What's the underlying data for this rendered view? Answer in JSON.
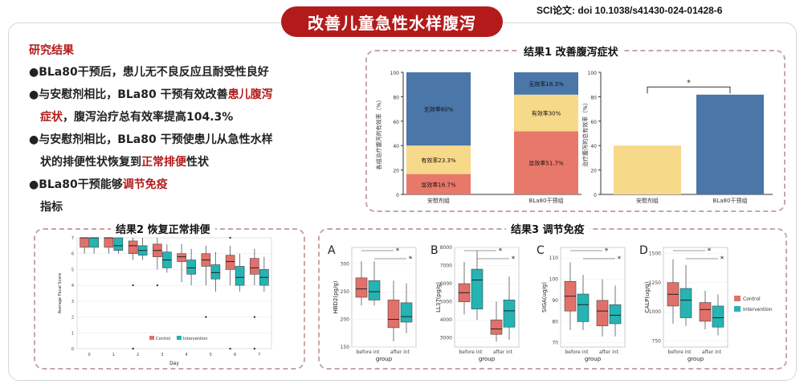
{
  "header": {
    "title": "改善儿童急性水样腹泻",
    "doi": "SCI论文: doi 10.1038/s41430-024-01428-6"
  },
  "findings": {
    "title": "研究结果",
    "bullets": [
      {
        "mark": "●",
        "l1a": "BLa80干预后，患儿无不良反应且耐受性良好",
        "l1em": "",
        "l2a": "",
        "l2em": "",
        "l2b": ""
      },
      {
        "mark": "●",
        "l1a": "与安慰剂相比，BLa80 干预有效改善",
        "l1em": "患儿腹泻",
        "l2a": "",
        "l2em": "症状",
        "l2b": "，腹泻治疗总有效率提高104.3%"
      },
      {
        "mark": "●",
        "l1a": "与安慰剂相比，BLa80 干预使患儿从急性水样",
        "l1em": "",
        "l2a": "状的排便性状恢复到",
        "l2em": "正常排便",
        "l2b": "性状"
      },
      {
        "mark": "●",
        "l1a": "BLa80干预能够",
        "l1em": "调节免疫",
        "l2a": "",
        "l2em": "",
        "l2b": "指标"
      }
    ]
  },
  "result1_title": "结果1 改善腹泻症状",
  "result2_title": "结果2 恢复正常排便",
  "result3_title": "结果3 调节免疫",
  "chart_data": [
    {
      "type": "bar",
      "stacked": true,
      "ylabel": "各组治疗腹泻的有效率（%）",
      "ylim": [
        0,
        100
      ],
      "yticks": [
        0,
        20,
        40,
        60,
        80,
        100
      ],
      "categories": [
        "安慰剂组",
        "BLa80干预组"
      ],
      "series": [
        {
          "name": "显效率",
          "color": "#e8786a",
          "values": [
            16.7,
            51.7
          ],
          "labels": [
            "显效率16.7%",
            "显效率51.7%"
          ]
        },
        {
          "name": "有效率",
          "color": "#f7d98a",
          "values": [
            23.3,
            30
          ],
          "labels": [
            "有效率23.3%",
            "有效率30%"
          ]
        },
        {
          "name": "无效率",
          "color": "#4a76a8",
          "values": [
            60,
            18.3
          ],
          "labels": [
            "无效率60%",
            "无效率18.3%"
          ]
        }
      ]
    },
    {
      "type": "bar",
      "ylabel": "治疗腹泻的总有效率（%）",
      "ylim": [
        0,
        100
      ],
      "yticks": [
        0,
        20,
        40,
        60,
        80,
        100
      ],
      "categories": [
        "安慰剂组",
        "BLa80干预组"
      ],
      "values": [
        40,
        81.7
      ],
      "colors": [
        "#f7d98a",
        "#4a76a8"
      ],
      "annotation": "*"
    },
    {
      "type": "box",
      "xlabel": "Day",
      "ylabel": "Average Fecal Score",
      "ylim": [
        0,
        7
      ],
      "yticks": [
        0,
        1,
        2,
        3,
        4,
        5,
        6,
        7
      ],
      "categories": [
        "0",
        "1",
        "2",
        "3",
        "4",
        "5",
        "6",
        "7"
      ],
      "legend": [
        "Control",
        "Intervention"
      ],
      "colors": [
        "#e2706a",
        "#26b3b3"
      ],
      "series": [
        {
          "name": "Control",
          "boxes": [
            [
              6,
              6.4,
              7,
              7,
              7
            ],
            [
              6,
              6.4,
              7,
              7,
              7
            ],
            [
              5.6,
              6,
              6.5,
              6.8,
              7
            ],
            [
              5,
              5.8,
              6.2,
              6.6,
              7
            ],
            [
              4.2,
              5.5,
              5.8,
              6,
              6.6
            ],
            [
              4,
              5.2,
              5.6,
              6,
              6.5
            ],
            [
              4,
              5,
              5.5,
              5.9,
              6.5
            ],
            [
              4,
              4.7,
              5.1,
              5.7,
              6.3
            ]
          ]
        },
        {
          "name": "Intervention",
          "boxes": [
            [
              6,
              6.4,
              7,
              7,
              7
            ],
            [
              6,
              6.2,
              6.5,
              7,
              7
            ],
            [
              5.6,
              5.9,
              6.2,
              6.5,
              7
            ],
            [
              4.8,
              5.1,
              5.6,
              6.1,
              6.6
            ],
            [
              4,
              4.7,
              5.1,
              5.6,
              6.3
            ],
            [
              3.6,
              4.4,
              4.8,
              5.3,
              6.1
            ],
            [
              3.6,
              4,
              4.5,
              5.2,
              6
            ],
            [
              3.6,
              4,
              4.5,
              5,
              5.8
            ]
          ]
        }
      ],
      "outliers": [
        [
          2,
          4
        ],
        [
          3,
          4
        ],
        [
          2,
          0
        ],
        [
          5,
          2
        ],
        [
          6,
          0
        ],
        [
          7,
          2
        ],
        [
          7,
          0
        ],
        [
          6,
          7
        ]
      ]
    },
    {
      "type": "box",
      "panel": "A",
      "ylabel": "HBD2(pg/g)",
      "xlabel": "group",
      "ylim": [
        150,
        330
      ],
      "yticks": [
        150,
        200,
        250,
        300
      ],
      "categories": [
        "before int",
        "after int"
      ],
      "series": [
        {
          "name": "Control",
          "boxes": [
            [
              225,
              240,
              255,
              275,
              305
            ],
            [
              160,
              185,
              200,
              235,
              270
            ]
          ]
        },
        {
          "name": "Intervention",
          "boxes": [
            [
              225,
              235,
              250,
              270,
              305
            ],
            [
              175,
              195,
              205,
              230,
              265
            ]
          ]
        }
      ],
      "annotation": "*"
    },
    {
      "type": "box",
      "panel": "B",
      "ylabel": "LL37(pg/g)",
      "xlabel": "group",
      "ylim": [
        2500,
        8000
      ],
      "yticks": [
        3000,
        4000,
        5000,
        6000,
        7000,
        8000
      ],
      "categories": [
        "before int",
        "after int"
      ],
      "series": [
        {
          "name": "Control",
          "boxes": [
            [
              4300,
              5000,
              5500,
              6000,
              7200
            ],
            [
              2800,
              3200,
              3500,
              4000,
              5000
            ]
          ]
        },
        {
          "name": "Intervention",
          "boxes": [
            [
              4000,
              4600,
              6200,
              6800,
              7800
            ],
            [
              2900,
              3600,
              4500,
              5100,
              6400
            ]
          ]
        }
      ],
      "annotation": "*"
    },
    {
      "type": "box",
      "panel": "C",
      "ylabel": "SIGA(ug/g)",
      "xlabel": "group",
      "ylim": [
        68,
        115
      ],
      "yticks": [
        70,
        80,
        90,
        100,
        110
      ],
      "categories": [
        "before int",
        "after int"
      ],
      "series": [
        {
          "name": "Control",
          "boxes": [
            [
              76,
              85,
              92,
              99,
              108
            ],
            [
              73,
              78,
              85,
              90,
              100
            ]
          ]
        },
        {
          "name": "Intervention",
          "boxes": [
            [
              76,
              80,
              88,
              93,
              102
            ],
            [
              73,
              79,
              83,
              88,
              97
            ]
          ]
        }
      ],
      "annotation": "*"
    },
    {
      "type": "box",
      "panel": "D",
      "ylabel": "CALP(ug/g)",
      "xlabel": "group",
      "ylim": [
        700,
        1550
      ],
      "yticks": [
        750,
        1000,
        1250,
        1500
      ],
      "categories": [
        "before int",
        "after int"
      ],
      "series": [
        {
          "name": "Control",
          "boxes": [
            [
              900,
              1050,
              1150,
              1250,
              1450
            ],
            [
              850,
              920,
              1020,
              1080,
              1180
            ]
          ]
        },
        {
          "name": "Intervention",
          "boxes": [
            [
              880,
              950,
              1100,
              1200,
              1400
            ],
            [
              800,
              870,
              950,
              1050,
              1150
            ]
          ]
        }
      ],
      "legend": [
        "Control",
        "Intervention"
      ],
      "annotation": "*"
    }
  ]
}
